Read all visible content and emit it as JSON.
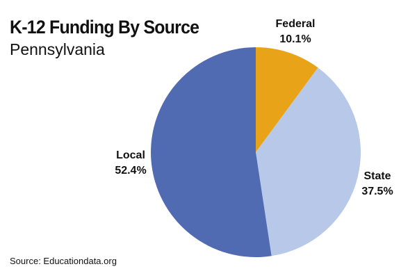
{
  "chart_data": {
    "type": "pie",
    "title": "K-12 Funding By Source",
    "subtitle": "Pennsylvania",
    "slices": [
      {
        "name": "Federal",
        "value": 10.1,
        "label": "10.1%",
        "color": "#E9A319"
      },
      {
        "name": "State",
        "value": 37.5,
        "label": "37.5%",
        "color": "#B7C8E8"
      },
      {
        "name": "Local",
        "value": 52.4,
        "label": "52.4%",
        "color": "#516BB3"
      }
    ],
    "start": "12 o'clock, clockwise"
  },
  "footer": {
    "source": "Source: Educationdata.org"
  }
}
